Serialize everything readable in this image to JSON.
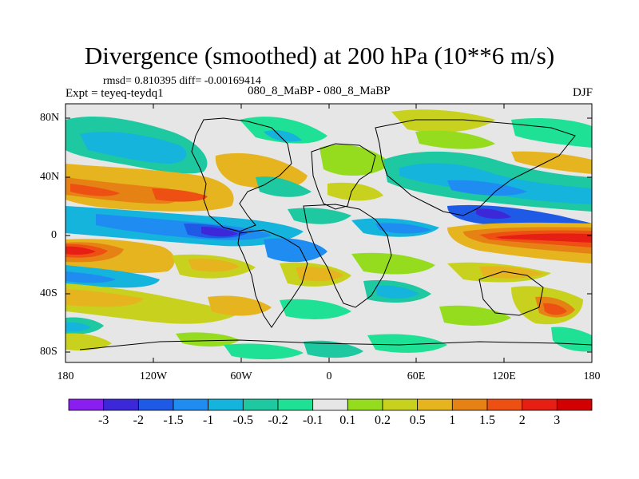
{
  "title": "Divergence (smoothed) at 200 hPa (10**6 m/s)",
  "stats": "rmsd= 0.810395 diff= -0.00169414",
  "experiment": "Expt = teyeq-teydq1",
  "center_label": "080_8_MaBP - 080_8_MaBP",
  "season": "DJF",
  "lat_labels": [
    "80N",
    "40N",
    "0",
    "40S",
    "80S"
  ],
  "lon_labels": [
    "180",
    "120W",
    "60W",
    "0",
    "60E",
    "120E",
    "180"
  ],
  "colorbar": {
    "labels": [
      "-3",
      "-2",
      "-1.5",
      "-1",
      "-0.5",
      "-0.2",
      "-0.1",
      "0.1",
      "0.2",
      "0.5",
      "1",
      "1.5",
      "2",
      "3"
    ],
    "colors": [
      "#8a1ef0",
      "#3c28d8",
      "#1e5ae6",
      "#1e8cf0",
      "#14b4dc",
      "#1ec8a0",
      "#1ee196",
      "#e6e6e6",
      "#96dc1e",
      "#c8d21e",
      "#e6b41e",
      "#e68214",
      "#ee5014",
      "#e61e14",
      "#d20000"
    ]
  },
  "palette": {
    "neutral": "#e6e6e6",
    "frame": "#000000"
  }
}
